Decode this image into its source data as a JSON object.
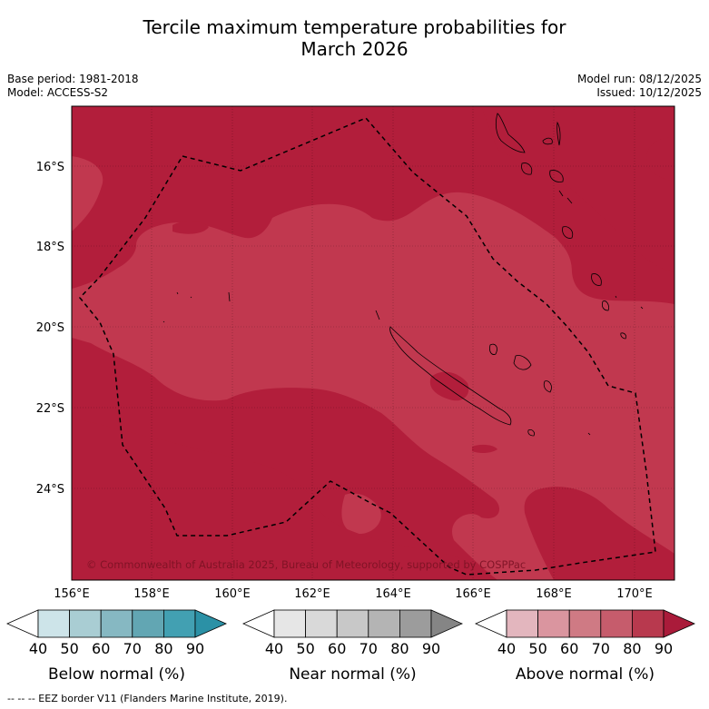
{
  "header": {
    "title_line1": "Tercile maximum temperature probabilities for",
    "title_line2": "March 2026",
    "base_period": "Base period: 1981-2018",
    "model": "Model: ACCESS-S2",
    "model_run": "Model run: 08/12/2025",
    "issued": "Issued: 10/12/2025"
  },
  "map": {
    "copyright": "© Commonwealth of Australia 2025, Bureau of Meteorology, supported by COSPPac",
    "lat_labels": [
      "16°S",
      "18°S",
      "20°S",
      "22°S",
      "24°S"
    ],
    "lon_labels": [
      "156°E",
      "158°E",
      "160°E",
      "162°E",
      "164°E",
      "166°E",
      "168°E",
      "170°E"
    ],
    "colors": {
      "above_80_90": "#b21e3b",
      "above_70_80": "#c1384f",
      "coast": "#000000",
      "eez": "#000000"
    }
  },
  "legends": [
    {
      "label": "Below normal (%)",
      "ticks": [
        "40",
        "50",
        "60",
        "70",
        "80",
        "90"
      ],
      "colors": [
        "#ffffff",
        "#cde4e9",
        "#a9cdd3",
        "#86b8c2",
        "#62a6b3",
        "#42a0b2",
        "#2b91a6"
      ]
    },
    {
      "label": "Near normal (%)",
      "ticks": [
        "40",
        "50",
        "60",
        "70",
        "80",
        "90"
      ],
      "colors": [
        "#ffffff",
        "#e6e6e6",
        "#d9d9d9",
        "#c8c8c8",
        "#b4b4b4",
        "#9c9c9c",
        "#858585"
      ]
    },
    {
      "label": "Above normal (%)",
      "ticks": [
        "40",
        "50",
        "60",
        "70",
        "80",
        "90"
      ],
      "colors": [
        "#ffffff",
        "#e3b6be",
        "#da959f",
        "#cf7a84",
        "#c65c6c",
        "#b8394e",
        "#aa1b3a"
      ]
    }
  ],
  "footer": {
    "eez_note": "--  --  -- EEZ border V11 (Flanders Marine Institute, 2019)."
  }
}
